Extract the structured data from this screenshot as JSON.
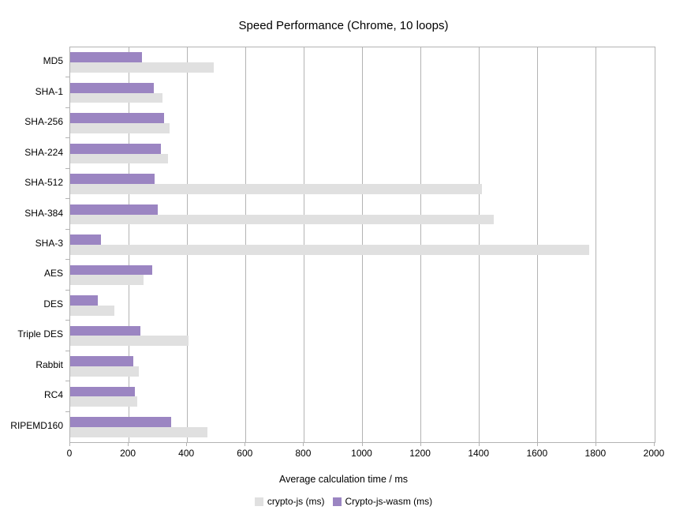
{
  "title": "Speed Performance (Chrome, 10 loops)",
  "xlabel": "Average calculation time / ms",
  "colors": {
    "axis": "#b3b3b3",
    "grid": "#b3b3b3",
    "text": "#000000"
  },
  "chart_data": {
    "type": "bar",
    "orientation": "horizontal",
    "title": "Speed Performance (Chrome, 10 loops)",
    "xlabel": "Average calculation time / ms",
    "ylabel": "",
    "xlim": [
      0,
      2000
    ],
    "xticks": [
      0,
      200,
      400,
      600,
      800,
      1000,
      1200,
      1400,
      1600,
      1800,
      2000
    ],
    "grid": true,
    "legend_position": "bottom",
    "categories": [
      "MD5",
      "SHA-1",
      "SHA-256",
      "SHA-224",
      "SHA-512",
      "SHA-384",
      "SHA-3",
      "AES",
      "DES",
      "Triple DES",
      "Rabbit",
      "RC4",
      "RIPEMD160"
    ],
    "series": [
      {
        "name": "crypto-js (ms)",
        "color": "#e0e0e0",
        "values": [
          490,
          315,
          340,
          335,
          1410,
          1450,
          1775,
          250,
          150,
          405,
          235,
          230,
          470
        ]
      },
      {
        "name": "Crypto-js-wasm (ms)",
        "color": "#9b85c2",
        "values": [
          245,
          285,
          320,
          310,
          290,
          300,
          105,
          280,
          95,
          240,
          215,
          220,
          345
        ]
      }
    ]
  }
}
